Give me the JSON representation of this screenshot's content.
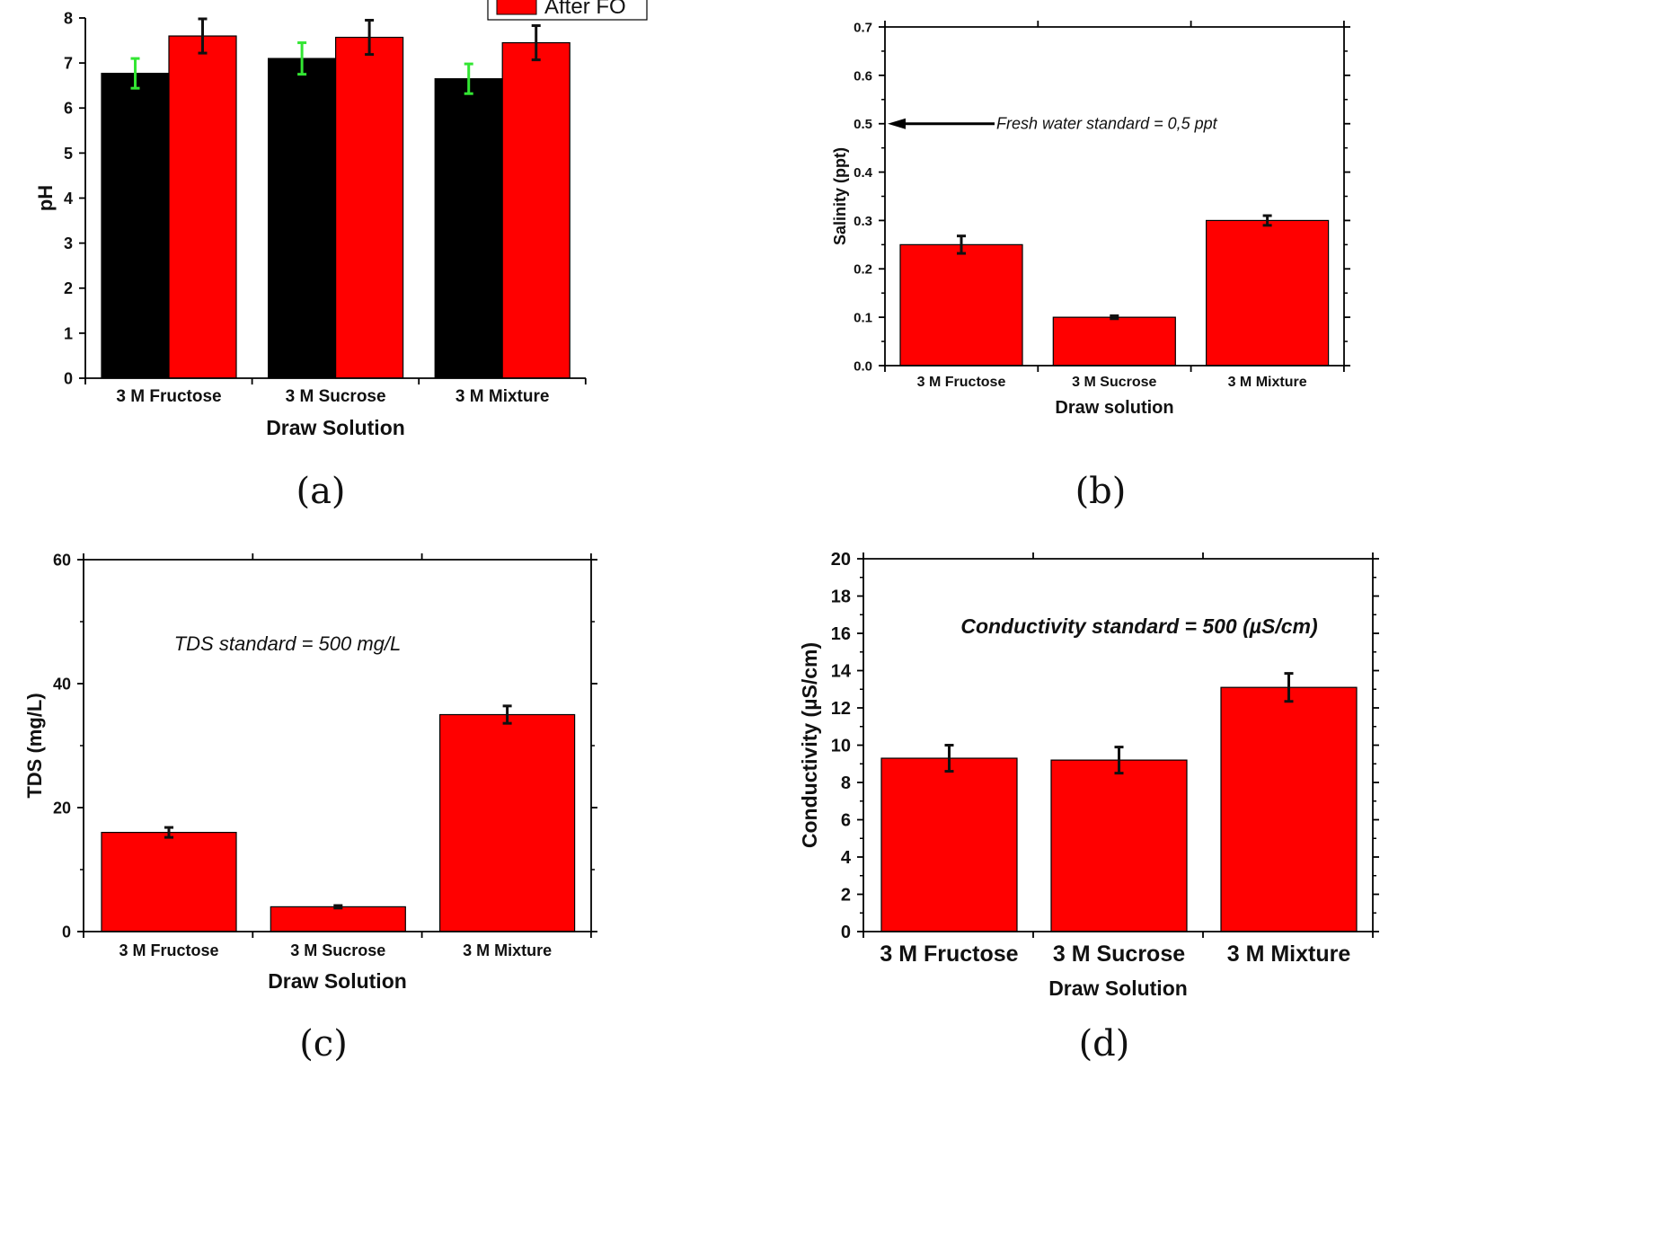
{
  "colors": {
    "before": "#000000",
    "after": "#ff0000",
    "before_error": "#33e633",
    "after_error": "#111111"
  },
  "chart_data": [
    {
      "panel_label": "(a)",
      "type": "bar",
      "xlabel": "Draw Solution",
      "ylabel": "pH",
      "categories": [
        "3 M Fructose",
        "3 M Sucrose",
        "3 M Mixture"
      ],
      "ylim": [
        0,
        8
      ],
      "yticks": [
        0,
        1,
        2,
        3,
        4,
        5,
        6,
        7,
        8
      ],
      "legend": {
        "position": "top",
        "visible_entries": [
          "After FO"
        ]
      },
      "series": [
        {
          "name": "",
          "color": "#000000",
          "values": [
            6.77,
            7.1,
            6.65
          ],
          "errors": [
            0.33,
            0.35,
            0.33
          ]
        },
        {
          "name": "After FO",
          "color": "#ff0000",
          "values": [
            7.6,
            7.57,
            7.45
          ],
          "errors": [
            0.38,
            0.38,
            0.38
          ]
        }
      ]
    },
    {
      "panel_label": "(b)",
      "type": "bar",
      "xlabel": "Draw solution",
      "ylabel": "Salinity (ppt)",
      "categories": [
        "3 M Fructose",
        "3 M Sucrose",
        "3 M Mixture"
      ],
      "ylim": [
        0,
        0.7
      ],
      "yticks": [
        "0.0",
        "0.1",
        "0.2",
        "0.3",
        "0.4",
        "0.5",
        "0.6",
        "0.7"
      ],
      "annotation": {
        "text": "Fresh water standard = 0,5 ppt",
        "arrow_to_y": 0.5
      },
      "series": [
        {
          "name": "",
          "color": "#ff0000",
          "values": [
            0.25,
            0.1,
            0.3
          ],
          "errors": [
            0.018,
            0.003,
            0.01
          ]
        }
      ]
    },
    {
      "panel_label": "(c)",
      "type": "bar",
      "xlabel": "Draw Solution",
      "ylabel": "TDS (mg/L)",
      "categories": [
        "3 M Fructose",
        "3 M Sucrose",
        "3 M Mixture"
      ],
      "ylim": [
        0,
        60
      ],
      "yticks": [
        0,
        20,
        40,
        60
      ],
      "annotation": {
        "text": "TDS standard = 500 mg/L"
      },
      "series": [
        {
          "name": "",
          "color": "#ff0000",
          "values": [
            16,
            4,
            35
          ],
          "errors": [
            0.8,
            0.2,
            1.4
          ]
        }
      ]
    },
    {
      "panel_label": "(d)",
      "type": "bar",
      "xlabel": "Draw Solution",
      "ylabel": "Conductivity (µS/cm)",
      "categories": [
        "3 M Fructose",
        "3 M Sucrose",
        "3 M Mixture"
      ],
      "ylim": [
        0,
        20
      ],
      "yticks": [
        0,
        2,
        4,
        6,
        8,
        10,
        12,
        14,
        16,
        18,
        20
      ],
      "annotation": {
        "text": "Conductivity standard = 500 (µS/cm)"
      },
      "series": [
        {
          "name": "",
          "color": "#ff0000",
          "values": [
            9.3,
            9.2,
            13.1
          ],
          "errors": [
            0.7,
            0.7,
            0.75
          ]
        }
      ]
    }
  ]
}
